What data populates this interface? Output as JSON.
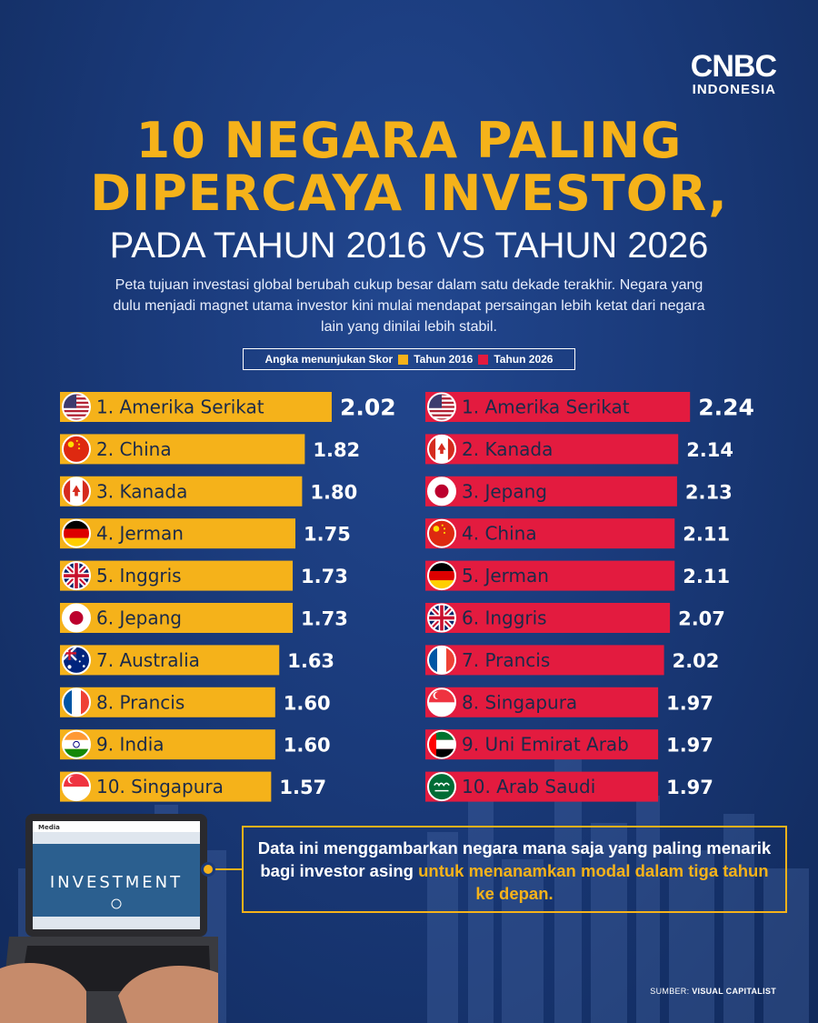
{
  "logo": {
    "main": "CNBC",
    "sub": "INDONESIA"
  },
  "title": {
    "line1": "10 NEGARA PALING",
    "line2": "DIPERCAYA INVESTOR,",
    "line3": "PADA TAHUN 2016 VS TAHUN 2026"
  },
  "description": "Peta tujuan investasi global berubah cukup besar dalam satu dekade terakhir. Negara yang dulu menjadi magnet utama investor kini mulai mendapat persaingan lebih ketat dari negara lain yang dinilai lebih stabil.",
  "legend": {
    "label": "Angka menunjukan Skor",
    "series1": "Tahun 2016",
    "series2": "Tahun 2026"
  },
  "colors": {
    "series1": "#f5b21a",
    "series2": "#e31b3f",
    "background": "#1a3a7a"
  },
  "chart_data": [
    {
      "type": "bar",
      "orientation": "horizontal",
      "series_name": "Tahun 2016",
      "categories": [
        "1. Amerika Serikat",
        "2. China",
        "3. Kanada",
        "4. Jerman",
        "5. Inggris",
        "6. Jepang",
        "7. Australia",
        "8. Prancis",
        "9. India",
        "10. Singapura"
      ],
      "values": [
        2.02,
        1.82,
        1.8,
        1.75,
        1.73,
        1.73,
        1.63,
        1.6,
        1.6,
        1.57
      ],
      "labels": [
        "2.02",
        "1.82",
        "1.80",
        "1.75",
        "1.73",
        "1.73",
        "1.63",
        "1.60",
        "1.60",
        "1.57"
      ],
      "flags": [
        "us",
        "cn",
        "ca",
        "de",
        "gb",
        "jp",
        "au",
        "fr",
        "in",
        "sg"
      ]
    },
    {
      "type": "bar",
      "orientation": "horizontal",
      "series_name": "Tahun 2026",
      "categories": [
        "1. Amerika Serikat",
        "2. Kanada",
        "3. Jepang",
        "4. China",
        "5. Jerman",
        "6. Inggris",
        "7. Prancis",
        "8. Singapura",
        "9. Uni Emirat Arab",
        "10. Arab Saudi"
      ],
      "values": [
        2.24,
        2.14,
        2.13,
        2.11,
        2.11,
        2.07,
        2.02,
        1.97,
        1.97,
        1.97
      ],
      "labels": [
        "2.24",
        "2.14",
        "2.13",
        "2.11",
        "2.11",
        "2.07",
        "2.02",
        "1.97",
        "1.97",
        "1.97"
      ],
      "flags": [
        "us",
        "ca",
        "jp",
        "cn",
        "de",
        "gb",
        "fr",
        "sg",
        "ae",
        "sa"
      ]
    }
  ],
  "note": {
    "text": "Data ini menggambarkan negara mana saja yang paling menarik bagi investor asing",
    "highlight": "untuk menanamkan modal dalam tiga tahun ke depan."
  },
  "laptop": {
    "brand": "Media",
    "screen_text": "INVESTMENT"
  },
  "source": {
    "label": "SUMBER:",
    "name": "VISUAL CAPITALIST"
  }
}
